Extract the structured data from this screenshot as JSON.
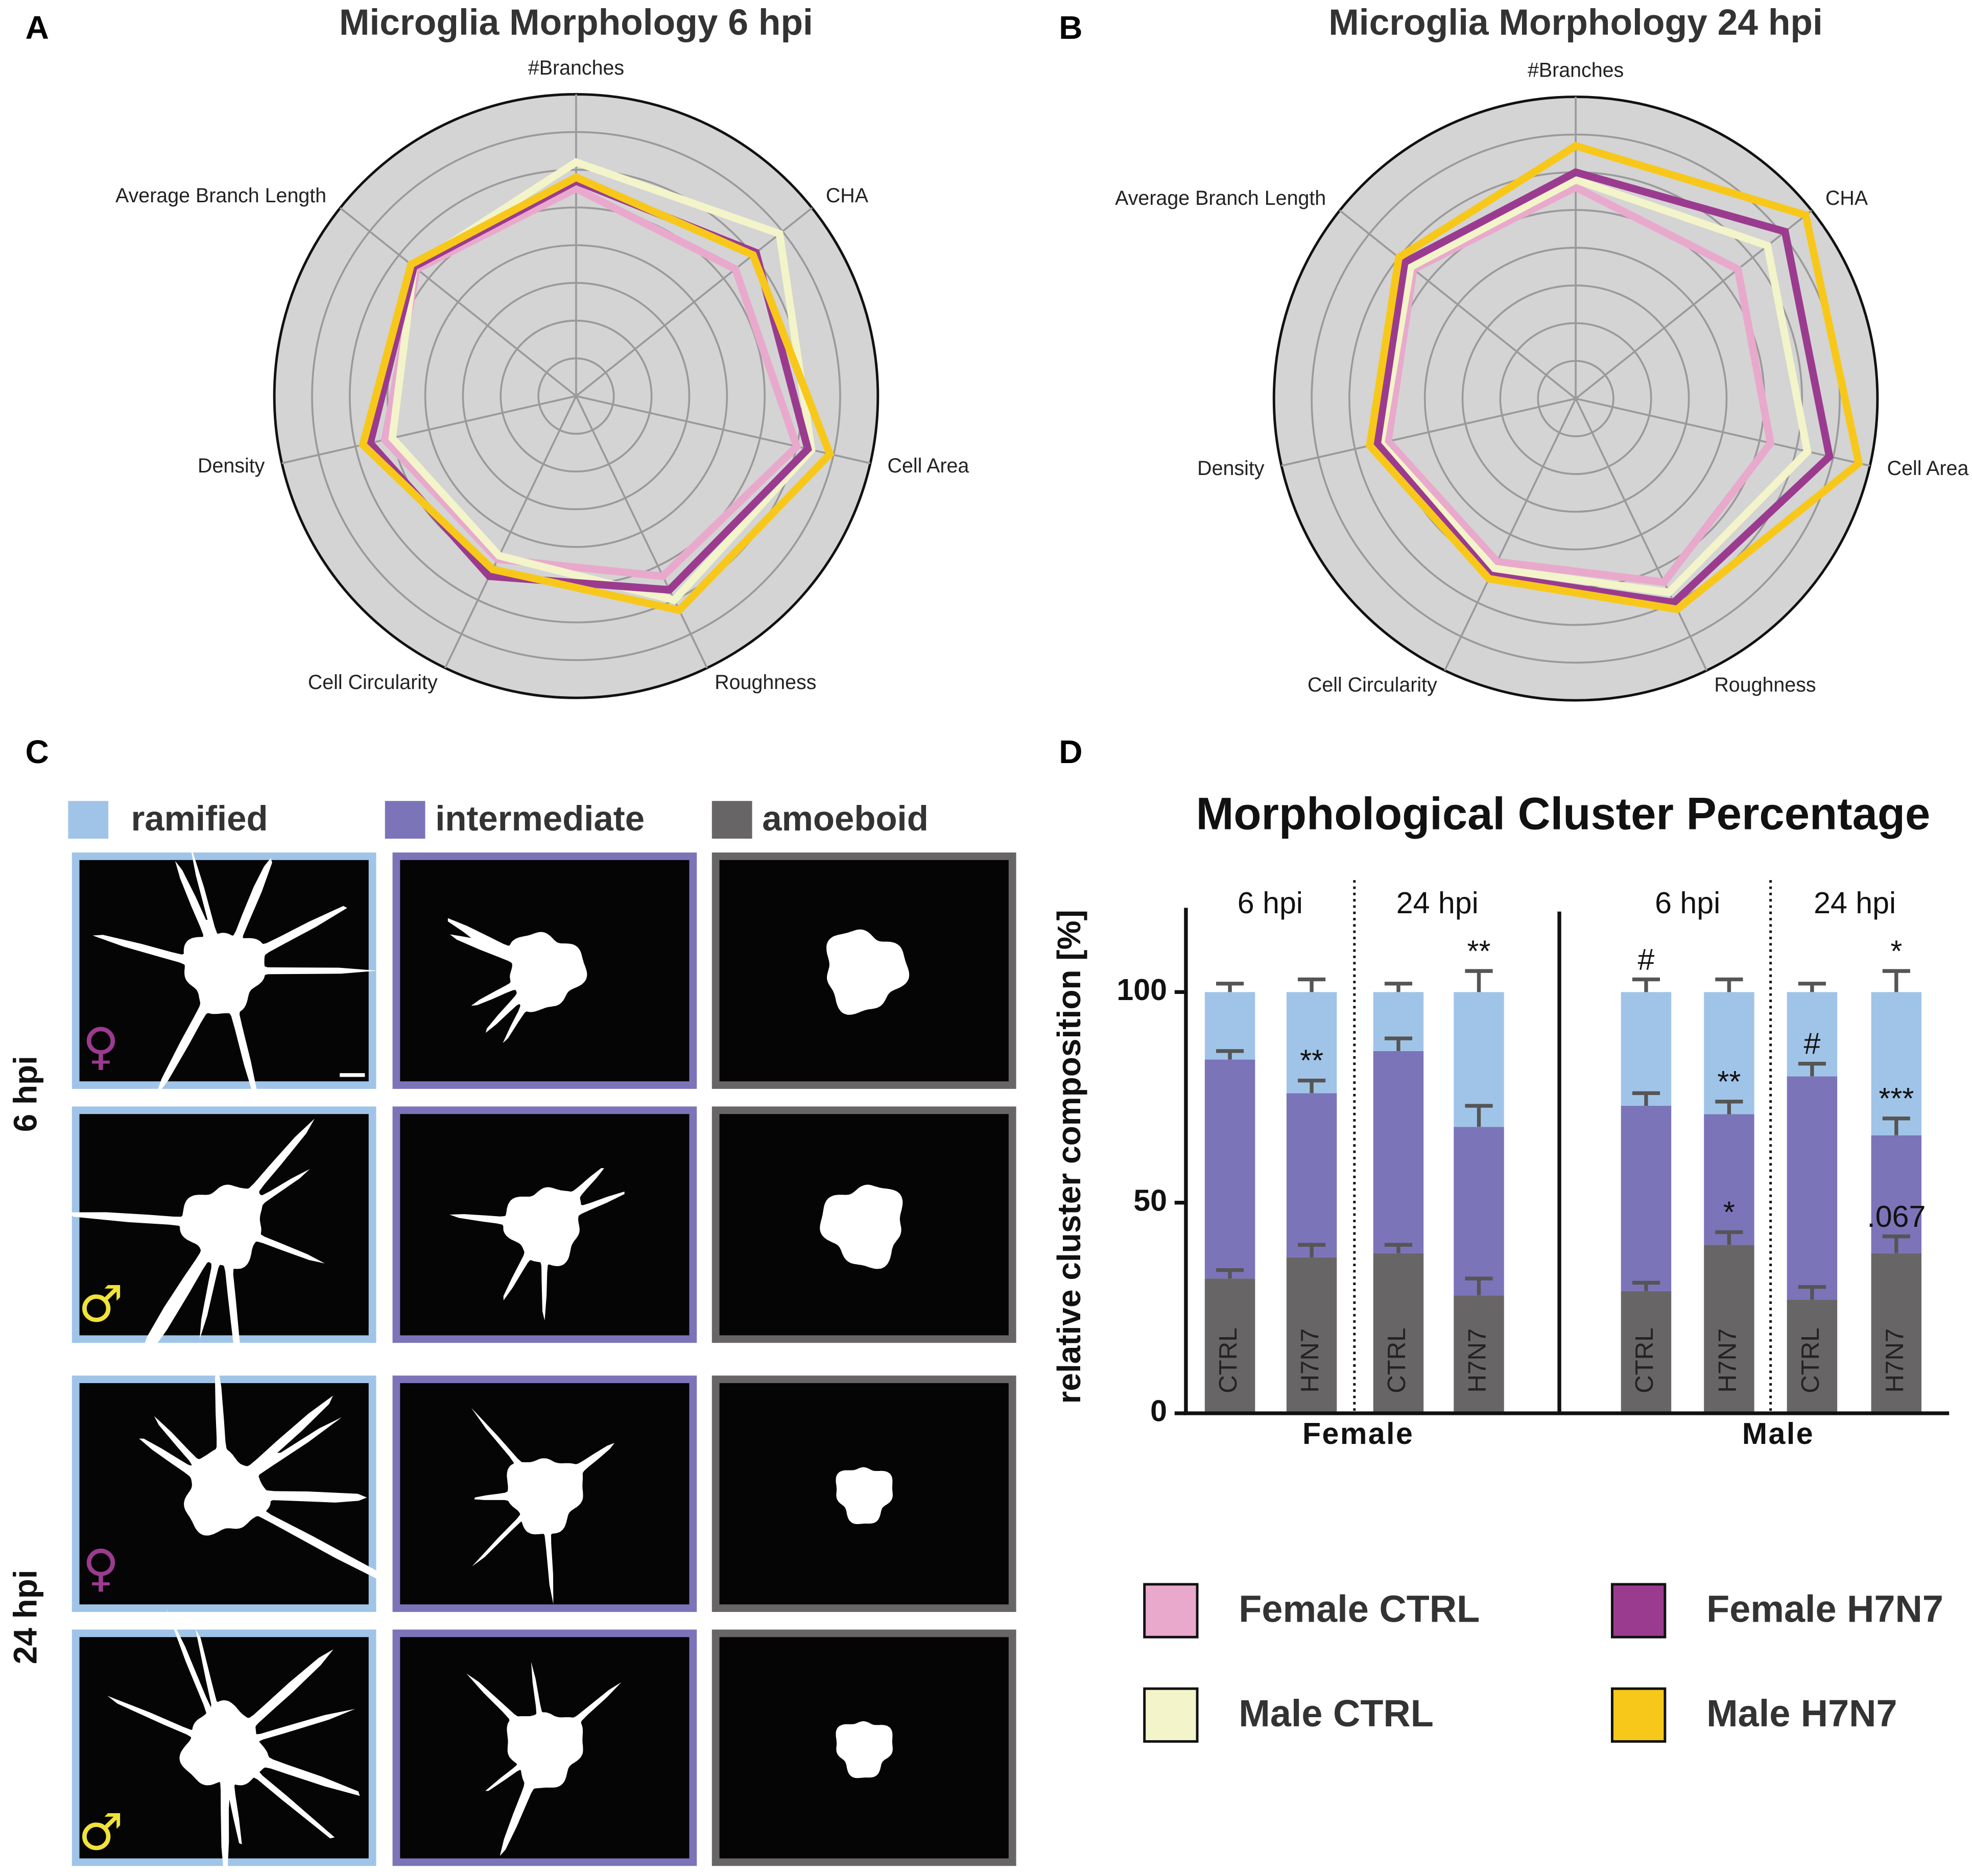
{
  "panel_labels": [
    "A",
    "B",
    "C",
    "D"
  ],
  "chart_data": [
    {
      "type": "radar",
      "title": "Microglia Morphology 6 hpi",
      "axes": [
        "#Branches",
        "CHA",
        "Cell Area",
        "Roughness",
        "Cell Circularity",
        "Density",
        "Average Branch Length"
      ],
      "rlim": [
        0,
        8
      ],
      "rticks": [
        1,
        2,
        3,
        4,
        5,
        6,
        7
      ],
      "grid": true,
      "series": [
        {
          "name": "Female CTRL",
          "color": "#e8a9cc",
          "values": [
            5.5,
            5.4,
            6.0,
            5.3,
            4.8,
            5.2,
            5.4
          ]
        },
        {
          "name": "Male CTRL",
          "color": "#f3f4c9",
          "values": [
            6.2,
            6.9,
            6.4,
            6.0,
            4.7,
            5.0,
            5.5
          ]
        },
        {
          "name": "Female H7N7",
          "color": "#9b3b8f",
          "values": [
            5.7,
            6.1,
            6.3,
            5.7,
            5.3,
            5.6,
            5.5
          ]
        },
        {
          "name": "Male H7N7",
          "color": "#f7c81a",
          "values": [
            5.8,
            6.0,
            6.9,
            6.3,
            5.1,
            5.8,
            5.6
          ]
        }
      ]
    },
    {
      "type": "radar",
      "title": "Microglia Morphology 24 hpi",
      "axes": [
        "#Branches",
        "CHA",
        "Cell Area",
        "Roughness",
        "Cell Circularity",
        "Density",
        "Average Branch Length"
      ],
      "rlim": [
        0,
        8
      ],
      "rticks": [
        1,
        2,
        3,
        4,
        5,
        6,
        7
      ],
      "grid": true,
      "series": [
        {
          "name": "Female CTRL",
          "color": "#e8a9cc",
          "values": [
            5.6,
            5.5,
            5.3,
            5.4,
            4.8,
            5.1,
            5.5
          ]
        },
        {
          "name": "Male CTRL",
          "color": "#f3f4c9",
          "values": [
            5.8,
            6.5,
            6.3,
            5.7,
            5.0,
            5.3,
            5.6
          ]
        },
        {
          "name": "Female H7N7",
          "color": "#9b3b8f",
          "values": [
            6.0,
            7.1,
            6.9,
            6.0,
            5.2,
            5.4,
            5.8
          ]
        },
        {
          "name": "Male H7N7",
          "color": "#f7c81a",
          "values": [
            6.7,
            7.8,
            7.7,
            6.2,
            5.3,
            5.6,
            6.0
          ]
        }
      ]
    },
    {
      "type": "bar",
      "stacked": true,
      "title": "Morphological Cluster Percentage",
      "ylabel": "relative cluster composition [%]",
      "categories": [
        "CTRL",
        "H7N7",
        "CTRL",
        "H7N7",
        "CTRL",
        "H7N7",
        "CTRL",
        "H7N7"
      ],
      "groups": [
        {
          "name": "Female",
          "subgroups": [
            "6 hpi",
            "24 hpi"
          ]
        },
        {
          "name": "Male",
          "subgroups": [
            "6 hpi",
            "24 hpi"
          ]
        }
      ],
      "ylim": [
        0,
        120
      ],
      "yticks": [
        0,
        50,
        100
      ],
      "series": [
        {
          "name": "amoeboid",
          "color": "#686566",
          "values": [
            32,
            37,
            38,
            28,
            29,
            40,
            27,
            38
          ],
          "errors": [
            2,
            3,
            2,
            4,
            2,
            3,
            3,
            4
          ],
          "annotations": [
            null,
            null,
            null,
            null,
            null,
            "*",
            null,
            ".067"
          ]
        },
        {
          "name": "intermediate",
          "color": "#7b74b9",
          "values": [
            52,
            39,
            48,
            40,
            44,
            31,
            53,
            28
          ],
          "errors": [
            2,
            3,
            3,
            5,
            3,
            3,
            3,
            4
          ],
          "annotations": [
            null,
            "**",
            null,
            null,
            null,
            "**",
            "#",
            "***"
          ]
        },
        {
          "name": "ramified",
          "color": "#a0c4e8",
          "values": [
            16,
            24,
            14,
            32,
            27,
            29,
            20,
            34
          ],
          "errors": [
            2,
            3,
            2,
            5,
            3,
            3,
            2,
            5
          ],
          "annotations": [
            null,
            null,
            null,
            "**",
            "#",
            null,
            null,
            "*"
          ]
        }
      ]
    }
  ],
  "morphology_panel": {
    "row_labels": [
      "6 hpi",
      "24 hpi"
    ],
    "symbols": [
      "♀",
      "♂"
    ]
  }
}
